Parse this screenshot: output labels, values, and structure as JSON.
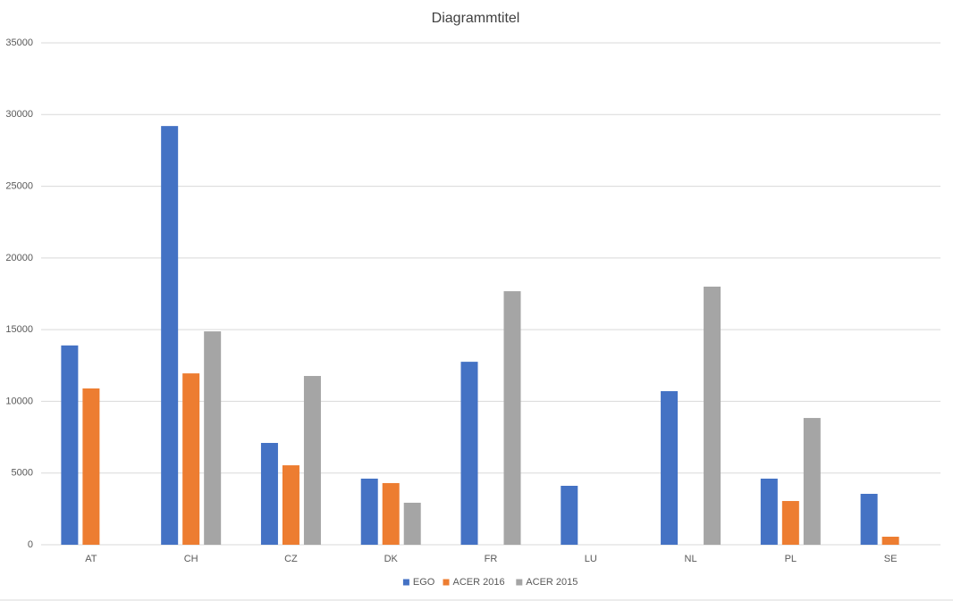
{
  "chart_data": {
    "type": "bar",
    "title": "Diagrammtitel",
    "categories": [
      "AT",
      "CH",
      "CZ",
      "DK",
      "FR",
      "LU",
      "NL",
      "PL",
      "SE"
    ],
    "series": [
      {
        "name": "EGO",
        "color": "#4472c4",
        "values": [
          13900,
          29200,
          7100,
          4610,
          12760,
          4110,
          10710,
          4610,
          3550
        ]
      },
      {
        "name": "ACER 2016",
        "color": "#ed7d31",
        "values": [
          10900,
          11950,
          5540,
          4300,
          null,
          null,
          null,
          3050,
          560
        ]
      },
      {
        "name": "ACER 2015",
        "color": "#a5a5a5",
        "values": [
          null,
          14880,
          11770,
          2930,
          17680,
          null,
          18000,
          8840,
          null
        ]
      }
    ],
    "ylim": [
      0,
      35000
    ],
    "yticks": [
      0,
      5000,
      10000,
      15000,
      20000,
      25000,
      30000,
      35000
    ],
    "grid": true,
    "legend": "bottom"
  }
}
